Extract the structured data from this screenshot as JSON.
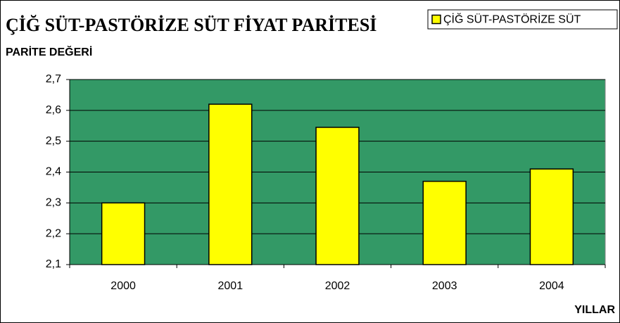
{
  "chart_data": {
    "type": "bar",
    "title": "ÇİĞ SÜT-PASTÖRİZE SÜT FİYAT PARİTESİ",
    "y_label": "PARİTE DEĞERİ",
    "x_label": "YILLAR",
    "categories": [
      "2000",
      "2001",
      "2002",
      "2003",
      "2004"
    ],
    "series": [
      {
        "name": "ÇİĞ SÜT-PASTÖRİZE SÜT",
        "color": "#ffff00",
        "values": [
          2.3,
          2.62,
          2.545,
          2.37,
          2.41
        ]
      }
    ],
    "ylim": [
      2.1,
      2.7
    ],
    "yticks": [
      {
        "value": 2.1,
        "label": "2,1"
      },
      {
        "value": 2.2,
        "label": "2,2"
      },
      {
        "value": 2.3,
        "label": "2,3"
      },
      {
        "value": 2.4,
        "label": "2,4"
      },
      {
        "value": 2.5,
        "label": "2,5"
      },
      {
        "value": 2.6,
        "label": "2,6"
      },
      {
        "value": 2.7,
        "label": "2,7"
      }
    ],
    "grid": true,
    "plot_background": "#339966",
    "legend": "top-right"
  }
}
